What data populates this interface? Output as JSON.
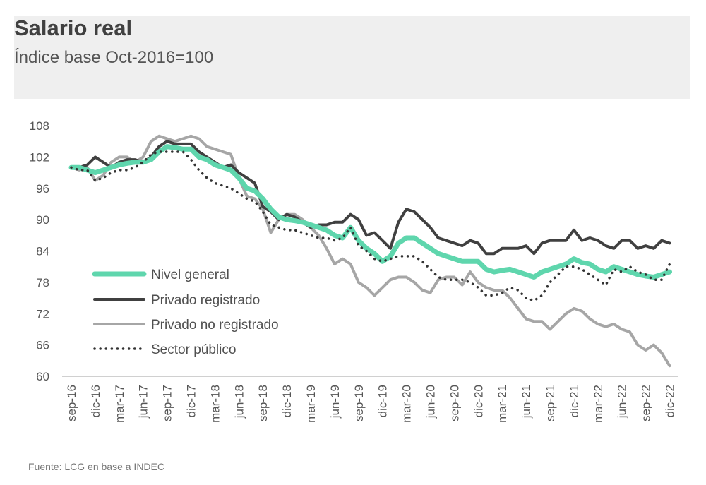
{
  "chart_data": {
    "type": "line",
    "title": "Salario real",
    "subtitle": "Índice base Oct-2016=100",
    "source": "Fuente: LCG en base a INDEC",
    "ylim": [
      60,
      108
    ],
    "yticks": [
      60,
      66,
      72,
      78,
      84,
      90,
      96,
      102,
      108
    ],
    "xtick_labels": [
      "sep-16",
      "dic-16",
      "mar-17",
      "jun-17",
      "sep-17",
      "dic-17",
      "mar-18",
      "jun-18",
      "sep-18",
      "dic-18",
      "mar-19",
      "jun-19",
      "sep-19",
      "dic-19",
      "mar-20",
      "jun-20",
      "sep-20",
      "dic-20",
      "mar-21",
      "jun-21",
      "sep-21",
      "dic-21",
      "mar-22",
      "jun-22",
      "sep-22",
      "dic-22"
    ],
    "x_start": "sep-16",
    "x_frequency": "monthly",
    "legend_position": "middle-left",
    "grid": false,
    "series": [
      {
        "name": "Nivel general",
        "color": "#5fd6ad",
        "style": "thick",
        "values": [
          100,
          100,
          99.5,
          99,
          99.5,
          100,
          100.5,
          100.8,
          101,
          101,
          101.5,
          103,
          104,
          103.8,
          103.5,
          103.5,
          102,
          101.5,
          100.5,
          100,
          99.5,
          98,
          96,
          95.5,
          94,
          92,
          90.5,
          90,
          89.8,
          89.5,
          89,
          88.5,
          88,
          87,
          86.5,
          88.5,
          86,
          84.5,
          83.5,
          82,
          83,
          85.5,
          86.5,
          86.5,
          85.5,
          84.5,
          83.5,
          83,
          82.5,
          82,
          82,
          82,
          80.5,
          80,
          80.3,
          80.5,
          80,
          79.5,
          79,
          80,
          80.5,
          81,
          81.5,
          82.5,
          81.8,
          81.5,
          80.5,
          80,
          81,
          80.5,
          80,
          79.5,
          79.2,
          79,
          79.5,
          80
        ]
      },
      {
        "name": "Privado registrado",
        "color": "#404040",
        "style": "solid",
        "values": [
          100,
          100,
          100.5,
          102,
          101,
          100,
          101,
          101.5,
          101.5,
          101,
          102,
          104,
          105,
          104.5,
          104.5,
          104.5,
          103,
          102,
          101,
          100,
          100.5,
          99,
          98,
          97,
          92.5,
          91.5,
          90,
          91,
          90.5,
          89.5,
          88.5,
          89,
          89,
          89.5,
          89.5,
          91,
          90,
          87,
          87.5,
          86,
          84.5,
          89.5,
          92,
          91.5,
          90,
          88.5,
          86.5,
          86,
          85.5,
          85,
          86,
          85.5,
          83.5,
          83.5,
          84.5,
          84.5,
          84.5,
          85,
          83.5,
          85.5,
          86,
          86,
          86,
          88,
          86,
          86.5,
          86,
          85,
          84.5,
          86,
          86,
          84.5,
          85,
          84.5,
          86,
          85.5
        ]
      },
      {
        "name": "Privado no registrado",
        "color": "#a6a6a6",
        "style": "solid",
        "values": [
          100,
          99.5,
          100,
          97.5,
          98.5,
          101,
          102,
          102,
          101,
          102,
          105,
          106,
          105.5,
          105,
          105.5,
          106,
          105.5,
          104,
          103.5,
          103,
          102.5,
          98,
          94.5,
          94,
          92,
          87.5,
          90,
          91,
          91,
          90,
          88.5,
          87,
          84.5,
          81.5,
          82.5,
          81.5,
          78,
          77,
          75.5,
          77,
          78.5,
          79,
          79,
          78,
          76.5,
          76,
          78.5,
          79,
          79,
          77.5,
          80,
          78,
          77,
          76.5,
          76.5,
          75,
          73,
          71,
          70.5,
          70.5,
          69,
          70.5,
          72,
          73,
          72.5,
          71,
          70,
          69.5,
          70,
          69,
          68.5,
          66,
          65,
          66,
          64.5,
          62
        ]
      },
      {
        "name": "Sector público",
        "color": "#333333",
        "style": "dotted",
        "values": [
          100,
          99.5,
          99.5,
          97.5,
          98,
          99,
          99.5,
          99.5,
          100,
          101,
          102.5,
          103,
          103,
          103,
          103,
          101.5,
          99.5,
          98,
          97,
          96.5,
          96,
          95,
          94,
          93.5,
          91.5,
          89,
          88.5,
          88,
          88,
          87.5,
          87,
          86.5,
          86.5,
          86,
          86.5,
          88.5,
          85,
          84,
          82.5,
          82,
          82.5,
          83,
          83,
          83,
          82,
          80.5,
          79,
          78.5,
          78.5,
          78.5,
          78,
          77,
          75.5,
          75.5,
          76,
          77,
          76.5,
          75,
          74.5,
          75.5,
          78,
          79.5,
          81,
          81,
          80.5,
          79.5,
          78.5,
          77.5,
          80.5,
          80,
          81,
          80,
          79.5,
          78.5,
          78.5,
          81.5
        ]
      }
    ]
  }
}
